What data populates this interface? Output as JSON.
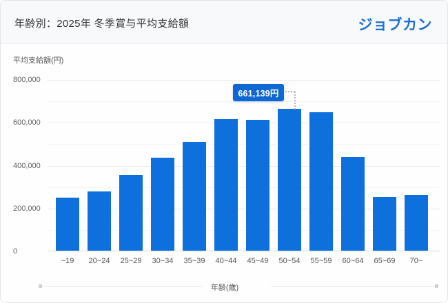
{
  "header": {
    "title": "年齢別：2025年 冬季賞与平均支給額",
    "logo_text": "ジョブカン"
  },
  "chart_data": {
    "type": "bar",
    "title": "年齢別：2025年 冬季賞与平均支給額",
    "categories": [
      "~19",
      "20~24",
      "25~29",
      "30~34",
      "35~39",
      "40~44",
      "45~49",
      "50~54",
      "55~59",
      "60~64",
      "65~69",
      "70~"
    ],
    "values": [
      247000,
      276000,
      353000,
      435000,
      508000,
      614000,
      610000,
      661139,
      646000,
      437000,
      251000,
      260000
    ],
    "xlabel": "年齢(歳)",
    "ylabel": "平均支給額(円)",
    "ylim": [
      0,
      800000
    ],
    "yticks": [
      {
        "value": 0,
        "label": "0"
      },
      {
        "value": 200000,
        "label": "200,000"
      },
      {
        "value": 400000,
        "label": "400,000"
      },
      {
        "value": 600000,
        "label": "600,000"
      },
      {
        "value": 800000,
        "label": "800,000"
      }
    ],
    "minor_grid_step": 100000,
    "major_grid_step": 200000,
    "grid": "horizontal",
    "legend": "none",
    "annotation": {
      "category": "50~54",
      "value": 661139,
      "label": "661,139円"
    }
  },
  "colors": {
    "bar": "#0d70dd",
    "tooltip_bg": "#0f68d2",
    "logo_blue": "#1d6fd1",
    "title_text": "#333333",
    "axis_text": "#555555"
  }
}
